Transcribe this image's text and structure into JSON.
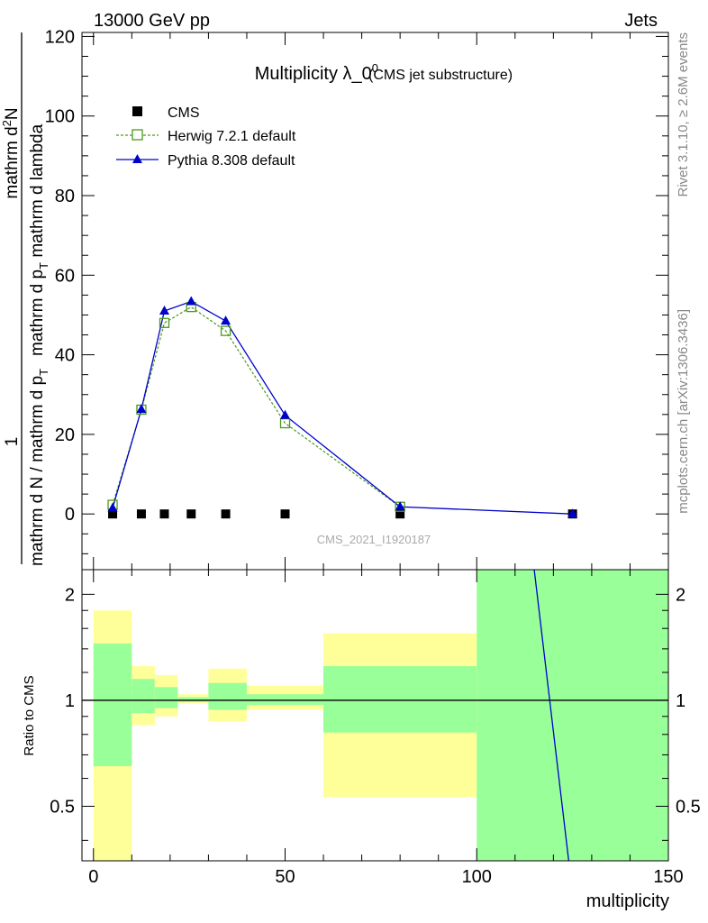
{
  "header": {
    "left": "13000 GeV pp",
    "right": "Jets"
  },
  "side_text": {
    "rivet": "Rivet 3.1.10, ≥ 2.6M events",
    "mcplots": "mcplots.cern.ch [arXiv:1306.3436]"
  },
  "watermark": "CMS_2021_I1920187",
  "colors": {
    "cms": "#000000",
    "herwig": "#4a9a1e",
    "pythia": "#0000cc",
    "band_inner": "#99ff99",
    "band_outer": "#ffff99"
  },
  "chart_data": [
    {
      "type": "line",
      "title_main": "Multiplicity λ_0",
      "title_sup": "0",
      "title_sub": "(CMS jet substructure)",
      "ylabel_line1": "1",
      "ylabel_line2": "mathrm d N / mathrm d p",
      "ylabel_sub2": "T",
      "ylabel_line2b": "mathrm d N",
      "ylabel_mid": "mathrm d p",
      "ylabel_sub3": "T",
      "ylabel_line3": "mathrm d lambda",
      "ylabel_num": "mathrm d",
      "ylabel_num_sup": "2",
      "ylabel_num2": "N",
      "xlim": [
        -3,
        150
      ],
      "ylim": [
        -14,
        121
      ],
      "yticks": [
        0,
        20,
        40,
        60,
        80,
        100,
        120
      ],
      "grid": false,
      "legend_position": "top-left",
      "x": [
        5,
        12.5,
        18.5,
        25.5,
        34.5,
        50,
        80,
        125
      ],
      "series": [
        {
          "name": "CMS",
          "marker": "square",
          "values": [
            0,
            0,
            0,
            0,
            0,
            0,
            0,
            0
          ]
        },
        {
          "name": "Herwig 7.2.1 default",
          "marker": "open-square",
          "dashed": true,
          "values": [
            2.3,
            26.2,
            48,
            52,
            46,
            22.8,
            1.8,
            null
          ]
        },
        {
          "name": "Pythia 8.308 default",
          "marker": "triangle",
          "values": [
            1.5,
            26.3,
            51,
            53.4,
            48.5,
            24.8,
            1.8,
            0
          ]
        }
      ]
    },
    {
      "type": "area",
      "ylabel": "Ratio to CMS",
      "xlabel": "multiplicity",
      "xlim": [
        -3,
        150
      ],
      "ylim": [
        0.35,
        2.35
      ],
      "yticks": [
        0.5,
        1,
        2
      ],
      "xticks": [
        0,
        50,
        100,
        150
      ],
      "reference": 1,
      "bins": [
        {
          "x0": 0,
          "x1": 10,
          "inner": [
            0.65,
            1.45
          ],
          "outer": [
            0.3,
            1.8
          ]
        },
        {
          "x0": 10,
          "x1": 16,
          "inner": [
            0.92,
            1.15
          ],
          "outer": [
            0.85,
            1.25
          ]
        },
        {
          "x0": 16,
          "x1": 22,
          "inner": [
            0.95,
            1.09
          ],
          "outer": [
            0.9,
            1.18
          ]
        },
        {
          "x0": 22,
          "x1": 30,
          "inner": [
            0.99,
            1.02
          ],
          "outer": [
            0.98,
            1.04
          ]
        },
        {
          "x0": 30,
          "x1": 40,
          "inner": [
            0.94,
            1.12
          ],
          "outer": [
            0.87,
            1.23
          ]
        },
        {
          "x0": 40,
          "x1": 60,
          "inner": [
            0.97,
            1.04
          ],
          "outer": [
            0.94,
            1.1
          ]
        },
        {
          "x0": 60,
          "x1": 100,
          "inner": [
            0.81,
            1.25
          ],
          "outer": [
            0.53,
            1.55
          ]
        },
        {
          "x0": 100,
          "x1": 150,
          "inner": [
            0.3,
            2.4
          ],
          "outer": [
            0.3,
            2.4
          ]
        }
      ],
      "series": [
        {
          "name": "Pythia 8.308 default",
          "points": [
            [
              115,
              2.4
            ],
            [
              124,
              0.35
            ]
          ]
        }
      ]
    }
  ]
}
